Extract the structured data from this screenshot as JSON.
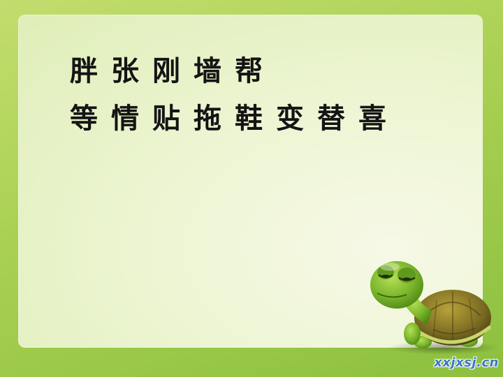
{
  "slide": {
    "row1": [
      "胖",
      "张",
      "刚",
      "墙",
      "帮"
    ],
    "row2": [
      "等",
      "情",
      "贴",
      "拖",
      "鞋",
      "变",
      "替",
      "喜"
    ]
  },
  "watermark": "xxjxsj.cn",
  "colors": {
    "background": "#a9d052",
    "panel": "#edf5d3",
    "text": "#141414",
    "watermark": "#3a78c8"
  }
}
